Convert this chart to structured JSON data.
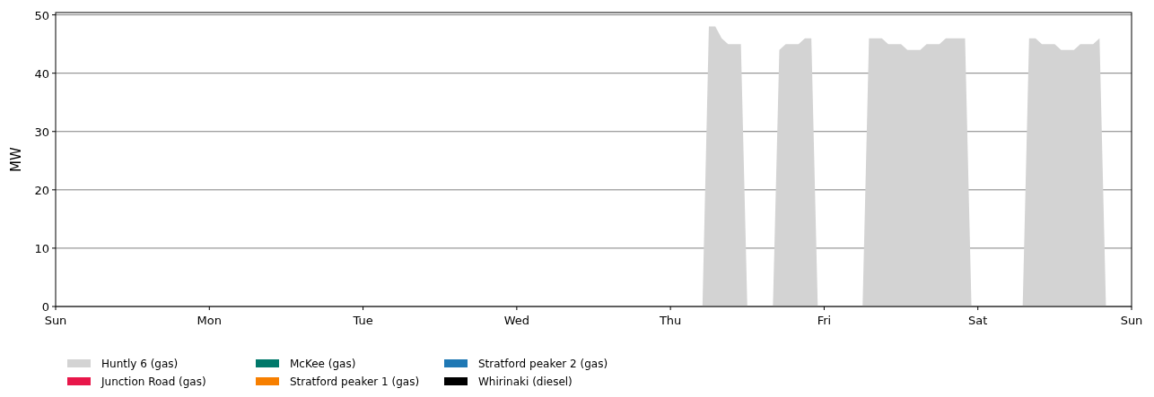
{
  "chart_data": {
    "type": "area",
    "stacked": true,
    "ylabel": "MW",
    "ylim": [
      0,
      50.4
    ],
    "yticks": [
      0,
      10,
      20,
      30,
      40,
      50
    ],
    "grid": "y",
    "legend": "bottom",
    "categories": [
      "Sun",
      null,
      null,
      null,
      null,
      null,
      null,
      null,
      null,
      null,
      null,
      null,
      null,
      null,
      null,
      null,
      null,
      null,
      null,
      null,
      null,
      null,
      null,
      null,
      "Mon",
      null,
      null,
      null,
      null,
      null,
      null,
      null,
      null,
      null,
      null,
      null,
      null,
      null,
      null,
      null,
      null,
      null,
      null,
      null,
      null,
      null,
      null,
      null,
      "Tue",
      null,
      null,
      null,
      null,
      null,
      null,
      null,
      null,
      null,
      null,
      null,
      null,
      null,
      null,
      null,
      null,
      null,
      null,
      null,
      null,
      null,
      null,
      null,
      "Wed",
      null,
      null,
      null,
      null,
      null,
      null,
      null,
      null,
      null,
      null,
      null,
      null,
      null,
      null,
      null,
      null,
      null,
      null,
      null,
      null,
      null,
      null,
      null,
      "Thu",
      null,
      null,
      null,
      null,
      null,
      null,
      null,
      null,
      null,
      null,
      null,
      null,
      null,
      null,
      null,
      null,
      null,
      null,
      null,
      null,
      null,
      null,
      null,
      "Fri",
      null,
      null,
      null,
      null,
      null,
      null,
      null,
      null,
      null,
      null,
      null,
      null,
      null,
      null,
      null,
      null,
      null,
      null,
      null,
      null,
      null,
      null,
      null,
      "Sat",
      null,
      null,
      null,
      null,
      null,
      null,
      null,
      null,
      null,
      null,
      null,
      null,
      null,
      null,
      null,
      null,
      null,
      null,
      null,
      null,
      null,
      null,
      null,
      "Sun"
    ],
    "series": [
      {
        "name": "Huntly 6 (gas)",
        "color": "#d3d3d3",
        "values": [
          0,
          0,
          0,
          0,
          0,
          0,
          0,
          0,
          0,
          0,
          0,
          0,
          0,
          0,
          0,
          0,
          0,
          0,
          0,
          0,
          0,
          0,
          0,
          0,
          0,
          0,
          0,
          0,
          0,
          0,
          0,
          0,
          0,
          0,
          0,
          0,
          0,
          0,
          0,
          0,
          0,
          0,
          0,
          0,
          0,
          0,
          0,
          0,
          0,
          0,
          0,
          0,
          0,
          0,
          0,
          0,
          0,
          0,
          0,
          0,
          0,
          0,
          0,
          0,
          0,
          0,
          0,
          0,
          0,
          0,
          0,
          0,
          0,
          0,
          0,
          0,
          0,
          0,
          0,
          0,
          0,
          0,
          0,
          0,
          0,
          0,
          0,
          0,
          0,
          0,
          0,
          0,
          0,
          0,
          0,
          0,
          0,
          0,
          0,
          0,
          0,
          0,
          48,
          48,
          46,
          45,
          45,
          45,
          0,
          0,
          0,
          0,
          0,
          44,
          45,
          45,
          45,
          46,
          46,
          0,
          0,
          0,
          0,
          0,
          0,
          0,
          0,
          46,
          46,
          46,
          45,
          45,
          45,
          44,
          44,
          44,
          45,
          45,
          45,
          46,
          46,
          46,
          46,
          0,
          0,
          0,
          0,
          0,
          0,
          0,
          0,
          0,
          46,
          46,
          45,
          45,
          45,
          44,
          44,
          44,
          45,
          45,
          45,
          46,
          0,
          0,
          0,
          0,
          0
        ]
      },
      {
        "name": "Junction Road (gas)",
        "color": "#e8174a",
        "values": [
          null,
          null,
          null,
          null,
          null,
          null,
          null,
          null,
          null,
          null,
          null,
          null,
          null,
          null,
          null,
          null,
          null,
          null,
          null,
          null,
          null,
          null,
          null,
          null,
          null,
          null,
          null,
          null,
          null,
          null,
          null,
          null,
          null,
          null,
          null,
          null,
          null,
          null,
          null,
          null,
          null,
          null,
          null,
          null,
          null,
          null,
          null,
          null,
          null,
          null,
          null,
          null,
          null,
          null,
          null,
          null,
          null,
          null,
          null,
          null,
          null,
          null,
          null,
          null,
          null,
          null,
          null,
          null,
          null,
          null,
          null,
          null,
          null,
          null,
          null,
          null,
          null,
          null,
          null,
          null,
          null,
          null,
          null,
          null,
          null,
          null,
          null,
          null,
          null,
          null,
          null,
          null,
          null,
          null,
          null,
          null,
          null,
          null,
          null,
          null,
          null,
          null,
          null,
          null,
          null,
          null,
          null,
          null,
          null,
          null,
          null,
          null,
          null,
          null,
          null,
          null,
          null,
          null,
          null,
          null,
          null,
          null,
          null,
          null,
          null,
          null,
          null,
          null,
          null,
          null,
          null,
          null,
          null,
          null,
          null,
          null,
          null,
          null,
          null,
          null,
          null,
          null,
          null,
          null,
          null,
          null,
          null,
          null,
          null,
          null,
          null,
          null,
          null,
          null,
          null,
          null,
          null,
          null,
          null,
          null,
          null,
          null,
          null,
          null,
          null,
          null,
          null,
          null,
          null
        ]
      },
      {
        "name": "McKee (gas)",
        "color": "#00786a",
        "values": [
          null,
          null,
          null,
          null,
          null,
          null,
          null,
          null,
          null,
          null,
          null,
          null,
          null,
          null,
          null,
          null,
          null,
          null,
          null,
          null,
          null,
          null,
          null,
          null,
          null,
          null,
          null,
          null,
          null,
          null,
          null,
          null,
          null,
          null,
          null,
          null,
          null,
          null,
          null,
          null,
          null,
          null,
          null,
          null,
          null,
          null,
          null,
          null,
          null,
          null,
          null,
          null,
          null,
          null,
          null,
          null,
          null,
          null,
          null,
          null,
          null,
          null,
          null,
          null,
          null,
          null,
          null,
          null,
          null,
          null,
          null,
          null,
          null,
          null,
          null,
          null,
          null,
          null,
          null,
          null,
          null,
          null,
          null,
          null,
          null,
          null,
          null,
          null,
          null,
          null,
          null,
          null,
          null,
          null,
          null,
          null,
          null,
          null,
          null,
          null,
          null,
          null,
          null,
          null,
          null,
          null,
          null,
          null,
          null,
          null,
          null,
          null,
          null,
          null,
          null,
          null,
          null,
          null,
          null,
          null,
          null,
          null,
          null,
          null,
          null,
          null,
          null,
          null,
          null,
          null,
          null,
          null,
          null,
          null,
          null,
          null,
          null,
          null,
          null,
          null,
          null,
          null,
          null,
          null,
          null,
          null,
          null,
          null,
          null,
          null,
          null,
          null,
          null,
          null,
          null,
          null,
          null,
          null,
          null,
          null,
          null,
          null,
          null,
          null,
          null,
          null,
          null,
          null,
          null
        ]
      },
      {
        "name": "Stratford peaker 1 (gas)",
        "color": "#f77f00",
        "values": [
          null,
          null,
          null,
          null,
          null,
          null,
          null,
          null,
          null,
          null,
          null,
          null,
          null,
          null,
          null,
          null,
          null,
          null,
          null,
          null,
          null,
          null,
          null,
          null,
          null,
          null,
          null,
          null,
          null,
          null,
          null,
          null,
          null,
          null,
          null,
          null,
          null,
          null,
          null,
          null,
          null,
          null,
          null,
          null,
          null,
          null,
          null,
          null,
          null,
          null,
          null,
          null,
          null,
          null,
          null,
          null,
          null,
          null,
          null,
          null,
          null,
          null,
          null,
          null,
          null,
          null,
          null,
          null,
          null,
          null,
          null,
          null,
          null,
          null,
          null,
          null,
          null,
          null,
          null,
          null,
          null,
          null,
          null,
          null,
          null,
          null,
          null,
          null,
          null,
          null,
          null,
          null,
          null,
          null,
          null,
          null,
          null,
          null,
          null,
          null,
          null,
          null,
          null,
          null,
          null,
          null,
          null,
          null,
          null,
          null,
          null,
          null,
          null,
          null,
          null,
          null,
          null,
          null,
          null,
          null,
          null,
          null,
          null,
          null,
          null,
          null,
          null,
          null,
          null,
          null,
          null,
          null,
          null,
          null,
          null,
          null,
          null,
          null,
          null,
          null,
          null,
          null,
          null,
          null,
          null,
          null,
          null,
          null,
          null,
          null,
          null,
          null,
          null,
          null,
          null,
          null,
          null,
          null,
          null,
          null,
          null,
          null,
          null,
          null,
          null,
          null,
          null,
          null,
          null
        ]
      },
      {
        "name": "Stratford peaker 2 (gas)",
        "color": "#1f78b4",
        "values": [
          null,
          null,
          null,
          null,
          null,
          null,
          null,
          null,
          null,
          null,
          null,
          null,
          null,
          null,
          null,
          null,
          null,
          null,
          null,
          null,
          null,
          null,
          null,
          null,
          null,
          null,
          null,
          null,
          null,
          null,
          null,
          null,
          null,
          null,
          null,
          null,
          null,
          null,
          null,
          null,
          null,
          null,
          null,
          null,
          null,
          null,
          null,
          null,
          null,
          null,
          null,
          null,
          null,
          null,
          null,
          null,
          null,
          null,
          null,
          null,
          null,
          null,
          null,
          null,
          null,
          null,
          null,
          null,
          null,
          null,
          null,
          null,
          null,
          null,
          null,
          null,
          null,
          null,
          null,
          null,
          null,
          null,
          null,
          null,
          null,
          null,
          null,
          null,
          null,
          null,
          null,
          null,
          null,
          null,
          null,
          null,
          null,
          null,
          null,
          null,
          null,
          null,
          null,
          null,
          null,
          null,
          null,
          null,
          null,
          null,
          null,
          null,
          null,
          null,
          null,
          null,
          null,
          null,
          null,
          null,
          null,
          null,
          null,
          null,
          null,
          null,
          null,
          null,
          null,
          null,
          null,
          null,
          null,
          null,
          null,
          null,
          null,
          null,
          null,
          null,
          null,
          null,
          null,
          null,
          null,
          null,
          null,
          null,
          null,
          null,
          null,
          null,
          null,
          null,
          null,
          null,
          null,
          null,
          null,
          null,
          null,
          null,
          null,
          null,
          null,
          null,
          null,
          null,
          null
        ]
      },
      {
        "name": "Whirinaki (diesel)",
        "color": "#000000",
        "values": [
          null,
          null,
          null,
          null,
          null,
          null,
          null,
          null,
          null,
          null,
          null,
          null,
          null,
          null,
          null,
          null,
          null,
          null,
          null,
          null,
          null,
          null,
          null,
          null,
          null,
          null,
          null,
          null,
          null,
          null,
          null,
          null,
          null,
          null,
          null,
          null,
          null,
          null,
          null,
          null,
          null,
          null,
          null,
          null,
          null,
          null,
          null,
          null,
          null,
          null,
          null,
          null,
          null,
          null,
          null,
          null,
          null,
          null,
          null,
          null,
          null,
          null,
          null,
          null,
          null,
          null,
          null,
          null,
          null,
          null,
          null,
          null,
          null,
          null,
          null,
          null,
          null,
          null,
          null,
          null,
          null,
          null,
          null,
          null,
          null,
          null,
          null,
          null,
          null,
          null,
          null,
          null,
          null,
          null,
          null,
          null,
          null,
          null,
          null,
          null,
          null,
          null,
          null,
          null,
          null,
          null,
          null,
          null,
          null,
          null,
          null,
          null,
          null,
          null,
          null,
          null,
          null,
          null,
          null,
          null,
          null,
          null,
          null,
          null,
          null,
          null,
          null,
          null,
          null,
          null,
          null,
          null,
          null,
          null,
          null,
          null,
          null,
          null,
          null,
          null,
          null,
          null,
          null,
          null,
          null,
          null,
          null,
          null,
          null,
          null,
          null,
          null,
          null,
          null,
          null,
          null,
          null,
          null,
          null,
          null,
          null,
          null,
          null,
          null,
          null,
          null,
          null,
          null,
          null
        ]
      }
    ]
  }
}
